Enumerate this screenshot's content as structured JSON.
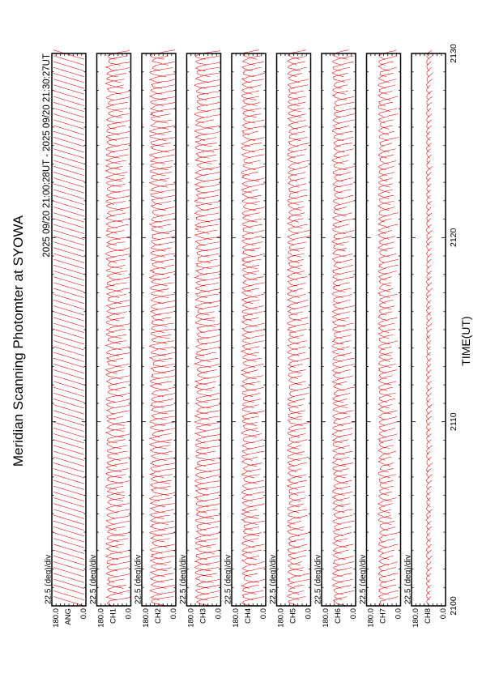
{
  "chart_data": {
    "type": "line",
    "title": "Meridian Scanning Photomter at SYOWA",
    "subtitle": "2025 09/20 21:00:28UT - 2025 09/20 21:30:27UT",
    "xlabel": "TIME(UT)",
    "x_ticks": [
      "2100",
      "2110",
      "2120",
      "2130"
    ],
    "xlim": [
      0,
      30
    ],
    "scale_label": "22.5 (deg)/div",
    "y_range_labels": [
      "180.0",
      "0.0"
    ],
    "ylim": [
      0,
      180
    ],
    "grid": false,
    "line_color": "#e00000",
    "panels": [
      {
        "name": "ANG",
        "amplitude": 0.1,
        "center": 0.5
      },
      {
        "name": "CH1",
        "amplitude": 0.55,
        "center": 0.45
      },
      {
        "name": "CH2",
        "amplitude": 0.6,
        "center": 0.45
      },
      {
        "name": "CH3",
        "amplitude": 0.6,
        "center": 0.45
      },
      {
        "name": "CH4",
        "amplitude": 0.5,
        "center": 0.45
      },
      {
        "name": "CH5",
        "amplitude": 0.45,
        "center": 0.45
      },
      {
        "name": "CH6",
        "amplitude": 0.45,
        "center": 0.45
      },
      {
        "name": "CH7",
        "amplitude": 0.4,
        "center": 0.45
      },
      {
        "name": "CH8",
        "amplitude": 0.12,
        "center": 0.5
      }
    ]
  }
}
